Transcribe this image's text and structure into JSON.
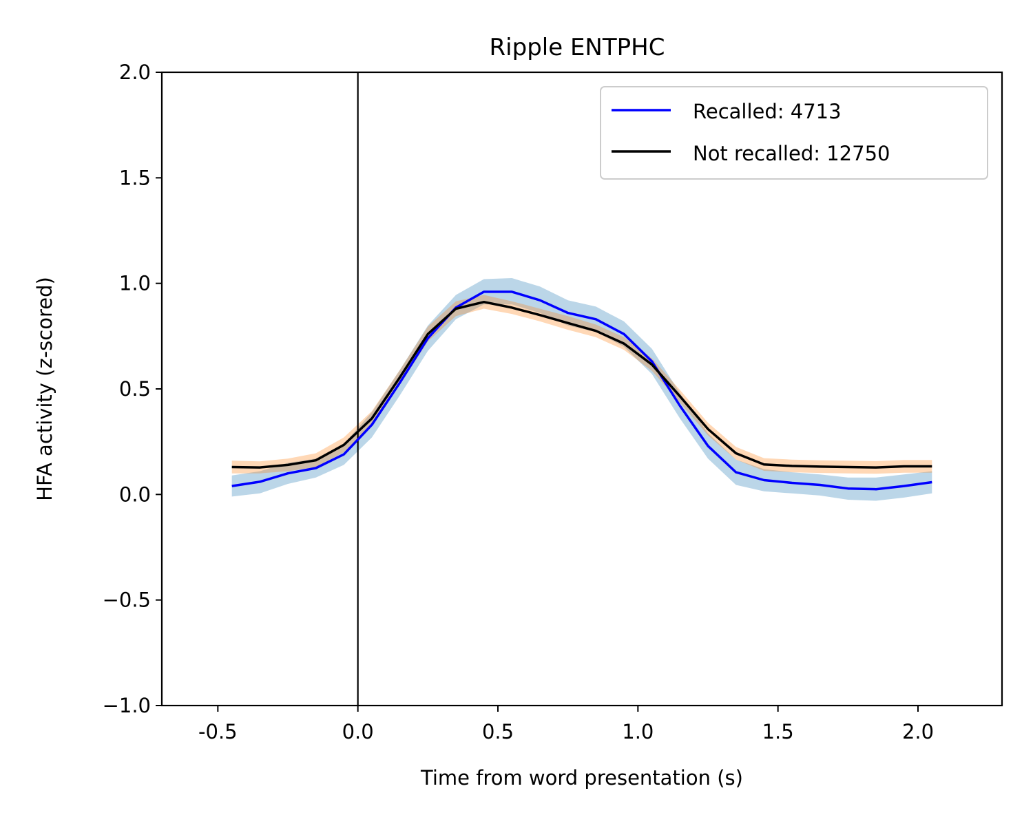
{
  "chart_data": {
    "type": "line",
    "title": "Ripple ENTPHC",
    "xlabel": "Time from word presentation (s)",
    "ylabel": "HFA activity (z-scored)",
    "xlim": [
      -0.7,
      2.3
    ],
    "ylim": [
      -1.0,
      2.0
    ],
    "xticks": [
      -0.5,
      0.0,
      0.5,
      1.0,
      1.5,
      2.0
    ],
    "xtick_labels": [
      "-0.5",
      "0.0",
      "0.5",
      "1.0",
      "1.5",
      "2.0"
    ],
    "yticks": [
      -1.0,
      -0.5,
      0.0,
      0.5,
      1.0,
      1.5,
      2.0
    ],
    "ytick_labels": [
      "−1.0",
      "−0.5",
      "0.0",
      "0.5",
      "1.0",
      "1.5",
      "2.0"
    ],
    "vline_x": 0.0,
    "grid": false,
    "legend_position": "top-right",
    "x": [
      -0.45,
      -0.35,
      -0.25,
      -0.15,
      -0.05,
      0.05,
      0.15,
      0.25,
      0.35,
      0.45,
      0.55,
      0.65,
      0.75,
      0.85,
      0.95,
      1.05,
      1.15,
      1.25,
      1.35,
      1.45,
      1.55,
      1.65,
      1.75,
      1.85,
      1.95,
      2.05
    ],
    "series": [
      {
        "name": "Recalled: 4713",
        "color": "#0000ff",
        "band_color": "#1f77b4",
        "values": [
          0.04,
          0.06,
          0.1,
          0.125,
          0.19,
          0.33,
          0.53,
          0.74,
          0.885,
          0.96,
          0.96,
          0.92,
          0.86,
          0.83,
          0.76,
          0.63,
          0.42,
          0.23,
          0.105,
          0.068,
          0.055,
          0.045,
          0.028,
          0.025,
          0.04,
          0.058
        ],
        "lower": [
          -0.01,
          0.005,
          0.05,
          0.08,
          0.14,
          0.27,
          0.47,
          0.68,
          0.83,
          0.9,
          0.9,
          0.86,
          0.8,
          0.77,
          0.7,
          0.57,
          0.36,
          0.17,
          0.045,
          0.015,
          0.005,
          -0.005,
          -0.025,
          -0.03,
          -0.015,
          0.005
        ],
        "upper": [
          0.09,
          0.11,
          0.15,
          0.17,
          0.24,
          0.39,
          0.59,
          0.8,
          0.945,
          1.02,
          1.025,
          0.985,
          0.92,
          0.89,
          0.82,
          0.69,
          0.48,
          0.29,
          0.165,
          0.12,
          0.105,
          0.095,
          0.08,
          0.08,
          0.095,
          0.11
        ]
      },
      {
        "name": "Not recalled: 12750",
        "color": "#000000",
        "band_color": "#ff7f0e",
        "values": [
          0.13,
          0.128,
          0.14,
          0.162,
          0.235,
          0.36,
          0.555,
          0.76,
          0.88,
          0.912,
          0.885,
          0.85,
          0.812,
          0.775,
          0.715,
          0.615,
          0.465,
          0.31,
          0.195,
          0.142,
          0.135,
          0.132,
          0.13,
          0.128,
          0.133,
          0.133
        ],
        "lower": [
          0.1,
          0.1,
          0.11,
          0.13,
          0.2,
          0.325,
          0.52,
          0.725,
          0.845,
          0.88,
          0.855,
          0.82,
          0.78,
          0.745,
          0.685,
          0.585,
          0.435,
          0.28,
          0.165,
          0.112,
          0.105,
          0.102,
          0.1,
          0.098,
          0.103,
          0.103
        ],
        "upper": [
          0.16,
          0.157,
          0.17,
          0.195,
          0.27,
          0.395,
          0.59,
          0.795,
          0.915,
          0.945,
          0.915,
          0.88,
          0.845,
          0.805,
          0.745,
          0.645,
          0.495,
          0.34,
          0.225,
          0.172,
          0.165,
          0.162,
          0.16,
          0.158,
          0.163,
          0.163
        ]
      }
    ]
  }
}
